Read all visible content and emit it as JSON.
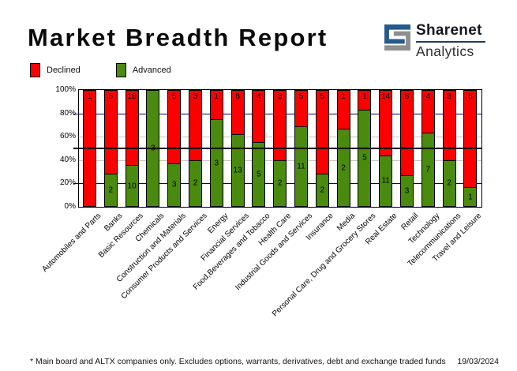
{
  "title": "Market Breadth Report",
  "logo": {
    "name": "Sharenet",
    "sub": "Analytics",
    "mark_blue": "#27598c",
    "mark_gray": "#8f8f8f"
  },
  "legend": {
    "declined_label": "Declined",
    "advanced_label": "Advanced"
  },
  "footer": {
    "note": "* Main board and ALTX companies only. Excludes options, warrants, derivatives, debt and exchange traded funds",
    "date": "19/03/2024"
  },
  "chart_data": {
    "type": "bar",
    "stacked": true,
    "normalized": "percent",
    "title": "Market Breadth Report",
    "xlabel": "",
    "ylabel": "",
    "ylim": [
      0,
      100
    ],
    "y_ticks": [
      "100%",
      "80%",
      "60%",
      "40%",
      "20%",
      "0%"
    ],
    "grid": {
      "navy_lines_pct": [
        80,
        20
      ],
      "gray_lines_pct": [
        60,
        40
      ],
      "black_midline_pct": 50
    },
    "legend_position": "top-left",
    "categories": [
      "Automobiles and Parts",
      "Banks",
      "Basic Resources",
      "Chemicals",
      "Construction and Materials",
      "Consumer Products and Services",
      "Energy",
      "Financial Services",
      "Food,Beverages and Tobacco",
      "Health Care",
      "Industrial Goods and Services",
      "Insurance",
      "Media",
      "Personal Care, Drug and Grocery Stores",
      "Real Estate",
      "Retail",
      "Technology",
      "Telecommunications",
      "Travel and Leisure"
    ],
    "series": [
      {
        "name": "Declined",
        "color": "#fa0000",
        "values": [
          1,
          5,
          18,
          0,
          5,
          3,
          1,
          8,
          4,
          3,
          5,
          5,
          1,
          1,
          14,
          8,
          4,
          3,
          5
        ]
      },
      {
        "name": "Advanced",
        "color": "#4a8a0e",
        "values": [
          0,
          2,
          10,
          3,
          3,
          2,
          3,
          13,
          5,
          2,
          11,
          2,
          2,
          5,
          11,
          3,
          7,
          2,
          1
        ]
      }
    ]
  }
}
